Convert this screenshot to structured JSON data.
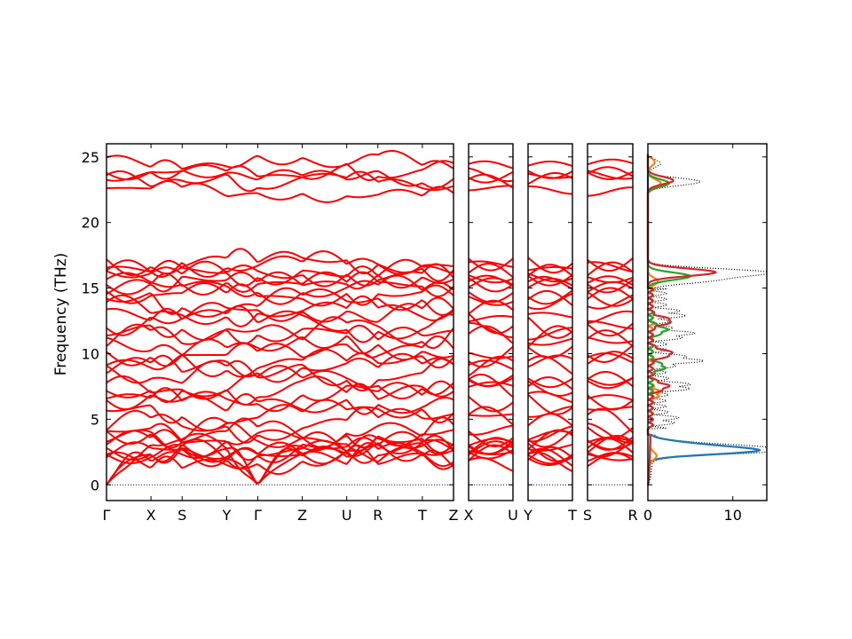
{
  "chart_data": {
    "type": "line",
    "title": "",
    "ylabel": "Frequency (THz)",
    "ylim": [
      -1.2,
      26
    ],
    "yticks": [
      0,
      5,
      10,
      15,
      20,
      25
    ],
    "colors": {
      "band": "#ff0000",
      "zero_line": "#0000cc",
      "dos_total": "#000000",
      "dos_1": "#1f77b4",
      "dos_2": "#ff7f0e",
      "dos_3": "#2ca02c",
      "dos_4": "#d62728"
    },
    "band_panels": [
      {
        "path_labels": [
          "Γ",
          "X",
          "S",
          "Y",
          "Γ",
          "Z",
          "U",
          "R",
          "T",
          "Z"
        ],
        "segment_lengths": [
          1,
          0.7,
          1,
          0.7,
          1,
          1,
          0.7,
          1,
          0.7
        ],
        "num_branches": 36
      },
      {
        "path_labels": [
          "X",
          "U"
        ],
        "segment_lengths": [
          1
        ],
        "num_branches": 36
      },
      {
        "path_labels": [
          "Y",
          "T"
        ],
        "segment_lengths": [
          1
        ],
        "num_branches": 36
      },
      {
        "path_labels": [
          "S",
          "R"
        ],
        "segment_lengths": [
          1
        ],
        "num_branches": 36
      }
    ],
    "band_levels": {
      "acoustic_top": [
        2.1,
        2.6,
        3.1
      ],
      "low_group": [
        1.8,
        2.2,
        2.5,
        2.7,
        3.0,
        3.3,
        3.6,
        4.0
      ],
      "mid_group": [
        4.6,
        5.5,
        6.2,
        6.8,
        7.3,
        7.8,
        8.4,
        8.9,
        9.5,
        10.0,
        10.6,
        11.1,
        11.7,
        12.3,
        12.9,
        13.5,
        14.0,
        14.5
      ],
      "high_group": [
        14.9,
        15.3,
        15.6,
        15.9,
        16.2,
        16.6,
        17.0
      ],
      "top_group": [
        22.5,
        23.2,
        23.6,
        24.0,
        24.6
      ]
    },
    "dos": {
      "xlim": [
        0,
        14
      ],
      "xticks": [
        0,
        10
      ],
      "series": [
        {
          "key": "total",
          "color": "#000000",
          "style": "dotted",
          "peaks": [
            [
              2.6,
              13.5
            ],
            [
              3.0,
              6.0
            ],
            [
              5.0,
              1.6
            ],
            [
              7.5,
              3.5
            ],
            [
              9.5,
              4.5
            ],
            [
              11.5,
              3.5
            ],
            [
              13.0,
              2.5
            ],
            [
              16.2,
              13.8
            ],
            [
              15.6,
              7.0
            ],
            [
              23.1,
              6.2
            ],
            [
              24.5,
              1.5
            ]
          ]
        },
        {
          "key": "pdos_1",
          "color": "#1f77b4",
          "style": "solid",
          "peaks": [
            [
              2.6,
              12.0
            ],
            [
              3.1,
              4.0
            ]
          ]
        },
        {
          "key": "pdos_2",
          "color": "#ff7f0e",
          "style": "solid",
          "peaks": [
            [
              2.2,
              0.8
            ],
            [
              7.0,
              1.0
            ],
            [
              15.5,
              1.2
            ],
            [
              23.0,
              1.5
            ],
            [
              24.6,
              0.8
            ]
          ]
        },
        {
          "key": "pdos_3",
          "color": "#2ca02c",
          "style": "solid",
          "peaks": [
            [
              9.0,
              1.6
            ],
            [
              11.8,
              1.8
            ],
            [
              15.9,
              5.0
            ],
            [
              23.0,
              2.5
            ]
          ]
        },
        {
          "key": "pdos_4",
          "color": "#d62728",
          "style": "solid",
          "peaks": [
            [
              7.5,
              2.0
            ],
            [
              10.0,
              2.5
            ],
            [
              12.5,
              2.4
            ],
            [
              16.2,
              8.0
            ],
            [
              23.2,
              3.0
            ]
          ]
        }
      ]
    }
  }
}
